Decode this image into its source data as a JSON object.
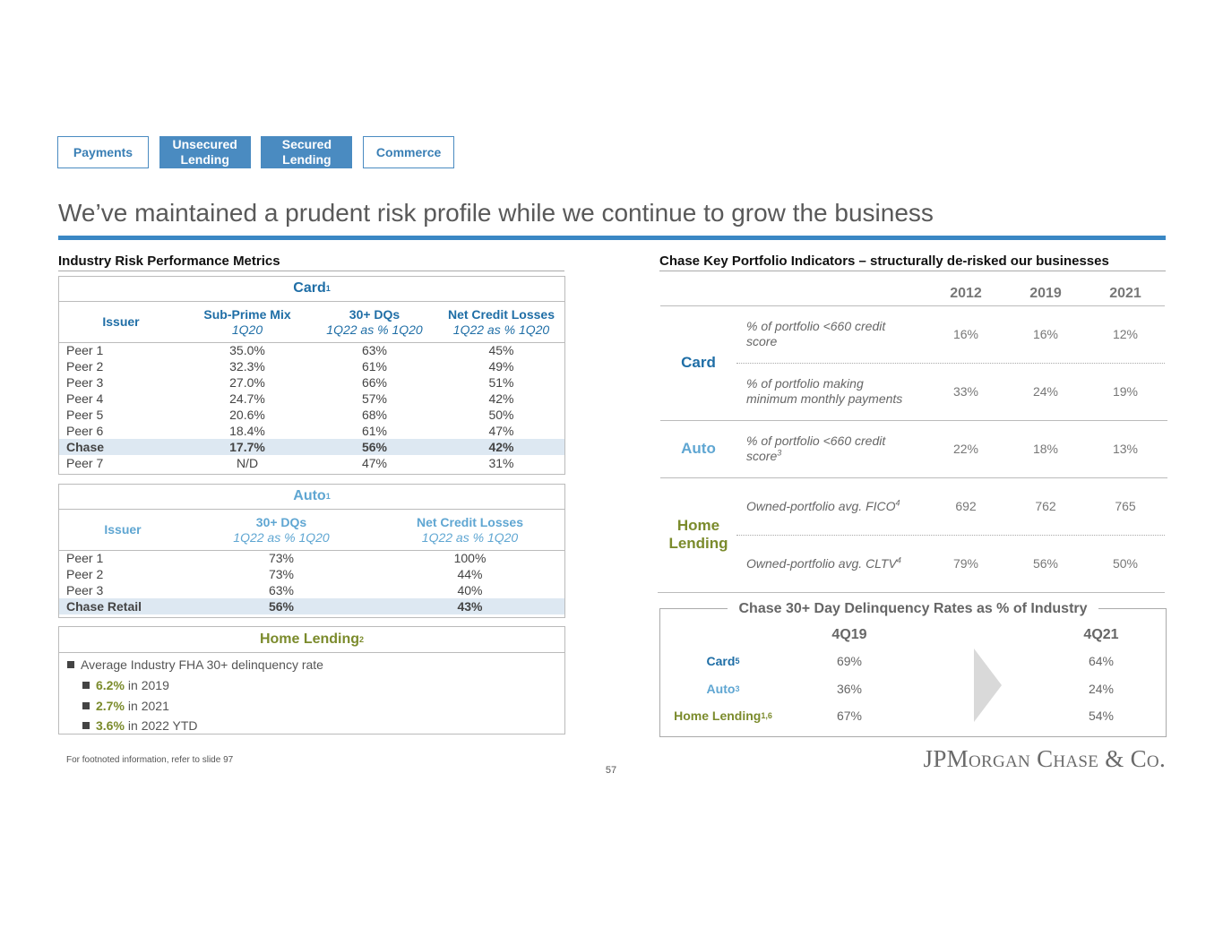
{
  "nav": [
    {
      "label": "Payments",
      "active": false
    },
    {
      "label": "Unsecured Lending",
      "active": true
    },
    {
      "label": "Secured Lending",
      "active": true
    },
    {
      "label": "Commerce",
      "active": false
    }
  ],
  "title": "We’ve maintained a prudent risk profile while we continue to grow the business",
  "industry": {
    "heading": "Industry Risk Performance Metrics",
    "card": {
      "title": "Card",
      "note": "1",
      "color": "#1f6ea6",
      "highlight_row": 6,
      "columns": [
        {
          "name": "Issuer"
        },
        {
          "name": "Sub-Prime Mix",
          "sub": "1Q20"
        },
        {
          "name": "30+ DQs",
          "sub": "1Q22 as % 1Q20"
        },
        {
          "name": "Net Credit Losses",
          "sub": "1Q22 as % 1Q20"
        }
      ],
      "rows": [
        [
          "Peer 1",
          "35.0%",
          "63%",
          "45%"
        ],
        [
          "Peer 2",
          "32.3%",
          "61%",
          "49%"
        ],
        [
          "Peer 3",
          "27.0%",
          "66%",
          "51%"
        ],
        [
          "Peer 4",
          "24.7%",
          "57%",
          "42%"
        ],
        [
          "Peer 5",
          "20.6%",
          "68%",
          "50%"
        ],
        [
          "Peer 6",
          "18.4%",
          "61%",
          "47%"
        ],
        [
          "Chase",
          "17.7%",
          "56%",
          "42%"
        ],
        [
          "Peer 7",
          "N/D",
          "47%",
          "31%"
        ]
      ]
    },
    "auto": {
      "title": "Auto",
      "note": "1",
      "color": "#5fa6d2",
      "highlight_row": 3,
      "columns": [
        {
          "name": "Issuer"
        },
        {
          "name": "30+ DQs",
          "sub": "1Q22 as % 1Q20"
        },
        {
          "name": "Net Credit Losses",
          "sub": "1Q22 as % 1Q20"
        }
      ],
      "rows": [
        [
          "Peer 1",
          "73%",
          "100%"
        ],
        [
          "Peer 2",
          "73%",
          "44%"
        ],
        [
          "Peer 3",
          "63%",
          "40%"
        ],
        [
          "Chase Retail",
          "56%",
          "43%"
        ]
      ]
    },
    "home_lending": {
      "title": "Home Lending",
      "note": "2",
      "color": "#7b8b2c",
      "bullet": "Average Industry FHA 30+ delinquency rate",
      "items": [
        {
          "value": "6.2%",
          "text": "in 2019"
        },
        {
          "value": "2.7%",
          "text": "in 2021"
        },
        {
          "value": "3.6%",
          "text": "in 2022 YTD"
        }
      ]
    }
  },
  "portfolio": {
    "heading": "Chase Key Portfolio Indicators – structurally de-risked our businesses",
    "years": [
      "2012",
      "2019",
      "2021"
    ],
    "groups": [
      {
        "name": "Card",
        "color": "#1f6ea6",
        "rows": [
          {
            "label": "% of portfolio <660 credit score",
            "values": [
              "16%",
              "16%",
              "12%"
            ]
          },
          {
            "label": "% of portfolio making minimum monthly payments",
            "values": [
              "33%",
              "24%",
              "19%"
            ]
          }
        ]
      },
      {
        "name": "Auto",
        "color": "#5fa6d2",
        "rows": [
          {
            "label": "% of portfolio <660 credit score",
            "note": "3",
            "values": [
              "22%",
              "18%",
              "13%"
            ]
          }
        ]
      },
      {
        "name": "Home Lending",
        "color": "#7b8b2c",
        "rows": [
          {
            "label": "Owned-portfolio avg. FICO",
            "note": "4",
            "values": [
              "692",
              "762",
              "765"
            ]
          },
          {
            "label": "Owned-portfolio avg. CLTV",
            "note": "4",
            "values": [
              "79%",
              "56%",
              "50%"
            ]
          }
        ]
      }
    ]
  },
  "delinquency": {
    "title": "Chase 30+ Day Delinquency Rates as % of Industry",
    "periods": [
      "4Q19",
      "4Q21"
    ],
    "rows": [
      {
        "name": "Card",
        "note": "5",
        "color": "#1f6ea6",
        "values": [
          "69%",
          "64%"
        ]
      },
      {
        "name": "Auto",
        "note": "3",
        "color": "#5fa6d2",
        "values": [
          "36%",
          "24%"
        ]
      },
      {
        "name": "Home Lending",
        "note": "1,6",
        "color": "#7b8b2c",
        "values": [
          "67%",
          "54%"
        ]
      }
    ]
  },
  "footnote": "For footnoted information, refer to slide 97",
  "page_number": "57",
  "logo": "JPMorgan Chase & Co."
}
